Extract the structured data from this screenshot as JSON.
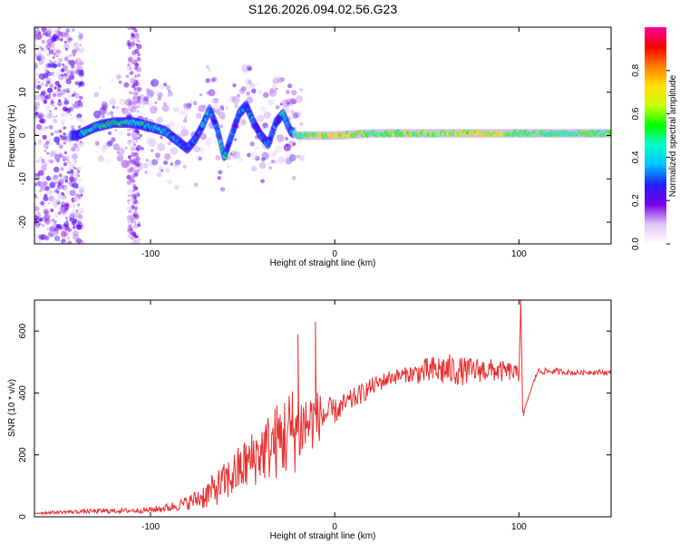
{
  "title": "S126.2026.094.02.56.G23",
  "chart_data": [
    {
      "type": "heatmap",
      "title": "S126.2026.094.02.56.G23",
      "xlabel": "Height of straight line (km)",
      "ylabel": "Frequency (Hz)",
      "xlim": [
        -163,
        150
      ],
      "ylim": [
        -25,
        25
      ],
      "xticks": [
        -100,
        0,
        100
      ],
      "yticks": [
        -20,
        -10,
        0,
        10,
        20
      ],
      "colorbar": {
        "label": "Normalized spectral amplitude",
        "range": [
          0,
          1
        ],
        "ticks": [
          "0.0",
          "0.2",
          "0.4",
          "0.6",
          "0.8"
        ],
        "colormap": [
          "#ffffff",
          "#e0c8f5",
          "#7a00e6",
          "#2020ff",
          "#00bfff",
          "#00ffd0",
          "#00ff00",
          "#c8ff00",
          "#ffe000",
          "#ff8000",
          "#ff0000",
          "#ff00a0"
        ]
      },
      "ridge": {
        "x": [
          -140,
          -130,
          -120,
          -110,
          -100,
          -92,
          -86,
          -80,
          -76,
          -72,
          -68,
          -64,
          -60,
          -56,
          -52,
          -48,
          -44,
          -40,
          -36,
          -32,
          -28,
          -24,
          -20,
          -10,
          0,
          20,
          40,
          60,
          80,
          100,
          120,
          150
        ],
        "freq": [
          0,
          2,
          3,
          3,
          2,
          1,
          -1,
          -3,
          -1,
          2,
          6,
          2,
          -5,
          0,
          5,
          7,
          3,
          0,
          -2,
          3,
          5,
          1,
          0,
          0,
          0,
          0.5,
          0.5,
          0.5,
          0.5,
          0.5,
          0.5,
          0.5
        ],
        "amplitude": [
          0.3,
          0.45,
          0.5,
          0.5,
          0.4,
          0.35,
          0.35,
          0.3,
          0.3,
          0.35,
          0.4,
          0.3,
          0.45,
          0.25,
          0.35,
          0.3,
          0.3,
          0.25,
          0.3,
          0.3,
          0.4,
          0.35,
          0.45,
          0.6,
          0.7,
          0.55,
          0.6,
          0.55,
          0.7,
          0.55,
          0.5,
          0.5
        ]
      }
    },
    {
      "type": "line",
      "xlabel": "Height of straight line (km)",
      "ylabel": "SNR (10 * v/v)",
      "xlim": [
        -163,
        150
      ],
      "ylim": [
        0,
        700
      ],
      "xticks": [
        -100,
        0,
        100
      ],
      "yticks": [
        0,
        200,
        400,
        600
      ],
      "color": "#e83030",
      "series": [
        {
          "name": "SNR",
          "x": [
            -163,
            -150,
            -130,
            -110,
            -100,
            -90,
            -80,
            -70,
            -60,
            -50,
            -40,
            -30,
            -25,
            -20,
            -15,
            -10,
            -5,
            0,
            10,
            20,
            30,
            40,
            50,
            60,
            70,
            80,
            90,
            95,
            100,
            101,
            102,
            110,
            120,
            130,
            140,
            150
          ],
          "y": [
            12,
            15,
            18,
            20,
            22,
            30,
            45,
            70,
            110,
            160,
            210,
            250,
            270,
            290,
            300,
            320,
            330,
            340,
            380,
            420,
            450,
            460,
            470,
            475,
            470,
            475,
            470,
            470,
            460,
            700,
            330,
            470,
            470,
            465,
            468,
            465
          ],
          "noise": [
            5,
            5,
            8,
            8,
            10,
            14,
            22,
            45,
            65,
            85,
            100,
            130,
            150,
            140,
            110,
            90,
            60,
            40,
            35,
            30,
            25,
            25,
            45,
            55,
            45,
            40,
            35,
            30,
            25,
            0,
            0,
            10,
            10,
            8,
            8,
            8
          ]
        }
      ],
      "spikes": [
        {
          "x": -10.5,
          "y": 630
        },
        {
          "x": -20,
          "y": 590
        },
        {
          "x": 101,
          "y": 700
        },
        {
          "x": 102.5,
          "y": 325
        }
      ]
    }
  ]
}
